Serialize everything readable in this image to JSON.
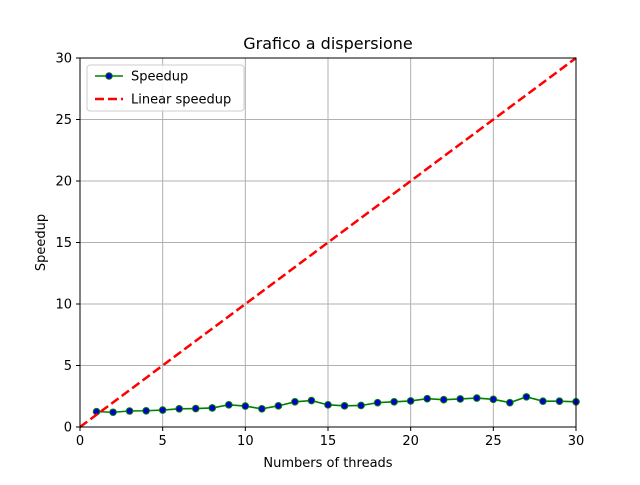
{
  "chart_data": {
    "type": "line",
    "title": "Grafico a dispersione",
    "xlabel": "Numbers of threads",
    "ylabel": "Speedup",
    "xlim": [
      0,
      30
    ],
    "ylim": [
      0,
      30
    ],
    "xticks": [
      0,
      5,
      10,
      15,
      20,
      25,
      30
    ],
    "yticks": [
      0,
      5,
      10,
      15,
      20,
      25,
      30
    ],
    "grid": true,
    "legend_position": "upper-left",
    "series": [
      {
        "name": "Speedup",
        "color": "#008000",
        "marker_face": "#0000cc",
        "style": "solid-with-markers",
        "x": [
          1,
          2,
          3,
          4,
          5,
          6,
          7,
          8,
          9,
          10,
          11,
          12,
          13,
          14,
          15,
          16,
          17,
          18,
          19,
          20,
          21,
          22,
          23,
          24,
          25,
          26,
          27,
          28,
          29,
          30
        ],
        "y": [
          1.25,
          1.2,
          1.3,
          1.32,
          1.38,
          1.48,
          1.5,
          1.55,
          1.8,
          1.7,
          1.48,
          1.72,
          2.05,
          2.15,
          1.8,
          1.72,
          1.75,
          1.98,
          2.05,
          2.12,
          2.3,
          2.22,
          2.28,
          2.35,
          2.25,
          1.98,
          2.45,
          2.1,
          2.1,
          2.05
        ]
      },
      {
        "name": "Linear speedup",
        "color": "#ff0000",
        "style": "dashed",
        "x": [
          0,
          30
        ],
        "y": [
          0,
          30
        ]
      }
    ]
  }
}
